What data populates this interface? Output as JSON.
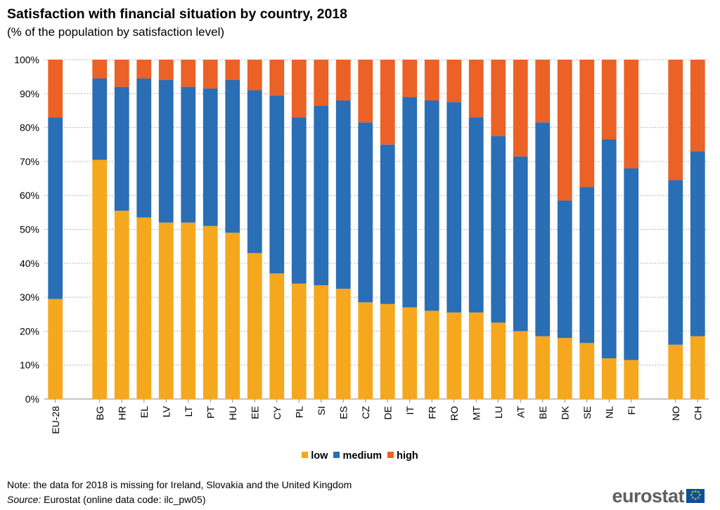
{
  "title": "Satisfaction with financial situation by country, 2018",
  "subtitle": "(% of the population  by satisfaction level)",
  "note": "Note: the data for 2018 is missing for Ireland,  Slovakia and the United Kingdom",
  "source_label": "Source:",
  "source_text": " Eurostat (online data code: ilc_pw05)",
  "logo_text": "eurostat",
  "colors": {
    "low": "#F5A81D",
    "medium": "#2A6EB5",
    "high": "#EB6126",
    "grid": "#b4b4b4",
    "axis": "#888888"
  },
  "chart_data": {
    "type": "bar",
    "stacked": true,
    "categories": [
      "EU-28",
      "BG",
      "HR",
      "EL",
      "LV",
      "LT",
      "PT",
      "HU",
      "EE",
      "CY",
      "PL",
      "SI",
      "ES",
      "CZ",
      "DE",
      "IT",
      "FR",
      "RO",
      "MT",
      "LU",
      "AT",
      "BE",
      "DK",
      "SE",
      "NL",
      "FI",
      "NO",
      "CH"
    ],
    "series": [
      {
        "name": "low",
        "values": [
          29.5,
          70.5,
          55.5,
          53.5,
          52,
          52,
          51,
          49,
          43,
          37,
          34,
          33.5,
          32.5,
          28.5,
          28,
          27,
          26,
          25.5,
          25.5,
          22.5,
          20,
          18.5,
          18,
          16.5,
          12,
          11.5,
          16,
          18.5
        ]
      },
      {
        "name": "medium",
        "values": [
          53.5,
          24,
          36.5,
          41,
          42,
          40,
          40.5,
          45,
          48,
          52.5,
          49,
          53,
          55.5,
          53,
          47,
          62,
          62,
          62,
          57.5,
          55,
          51.5,
          63,
          40.5,
          46,
          64.5,
          56.5,
          48.5,
          54.5
        ]
      },
      {
        "name": "high",
        "values": [
          17,
          5.5,
          8,
          5.5,
          6,
          8,
          8.5,
          6,
          9,
          10.5,
          17,
          13.5,
          12,
          18.5,
          25,
          11,
          12,
          12.5,
          17,
          22.5,
          28.5,
          18.5,
          41.5,
          37.5,
          23.5,
          32,
          35.5,
          27
        ]
      }
    ],
    "y_tick_labels": [
      "0%",
      "10%",
      "20%",
      "30%",
      "40%",
      "50%",
      "60%",
      "70%",
      "80%",
      "90%",
      "100%"
    ],
    "ylim": [
      0,
      100
    ],
    "grid": true,
    "legend_position": "bottom"
  }
}
